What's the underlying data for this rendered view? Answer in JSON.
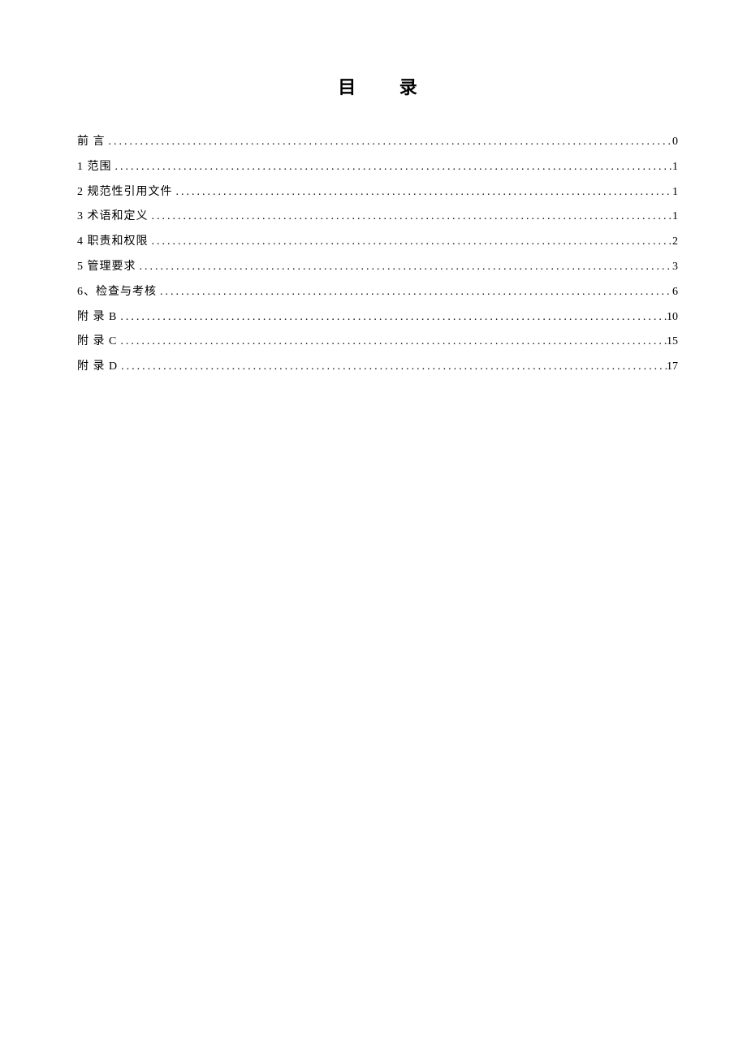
{
  "toc": {
    "title": "目  录",
    "entries": [
      {
        "label": "前    言",
        "page": "0"
      },
      {
        "label": "1   范围",
        "page": "1"
      },
      {
        "label": "2   规范性引用文件",
        "page": "1"
      },
      {
        "label": "3   术语和定义",
        "page": "1"
      },
      {
        "label": "4   职责和权限",
        "page": "2"
      },
      {
        "label": "5   管理要求",
        "page": "3"
      },
      {
        "label": "6、检查与考核",
        "page": "6"
      },
      {
        "label": "附  录   B",
        "page": "10"
      },
      {
        "label": "附 录 C",
        "page": "15"
      },
      {
        "label": "附 录 D",
        "page": "17"
      }
    ]
  },
  "styling": {
    "page_background": "#ffffff",
    "text_color": "#000000",
    "title_fontsize": 22,
    "entry_fontsize": 14,
    "line_height": 2.2,
    "font_family": "SimSun"
  }
}
